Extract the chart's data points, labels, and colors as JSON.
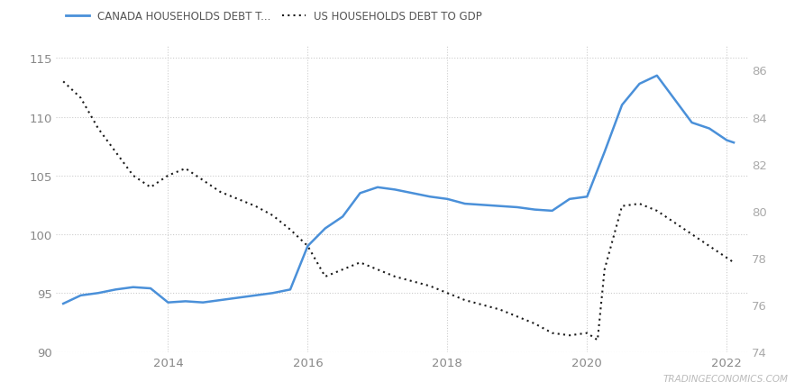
{
  "legend": [
    {
      "label": "CANADA HOUSEHOLDS DEBT T...",
      "color": "#4a90d9",
      "linestyle": "solid"
    },
    {
      "label": "US HOUSEHOLDS DEBT TO GDP",
      "color": "#1a1a1a",
      "linestyle": "dotted"
    }
  ],
  "canada": {
    "x": [
      2012.5,
      2012.75,
      2013.0,
      2013.25,
      2013.5,
      2013.75,
      2014.0,
      2014.25,
      2014.5,
      2014.75,
      2015.0,
      2015.25,
      2015.5,
      2015.75,
      2016.0,
      2016.25,
      2016.5,
      2016.75,
      2017.0,
      2017.25,
      2017.5,
      2017.75,
      2018.0,
      2018.25,
      2018.5,
      2018.75,
      2019.0,
      2019.25,
      2019.5,
      2019.75,
      2020.0,
      2020.25,
      2020.5,
      2020.75,
      2021.0,
      2021.25,
      2021.5,
      2021.75,
      2022.0,
      2022.1
    ],
    "y": [
      94.1,
      94.8,
      95.0,
      95.3,
      95.5,
      95.4,
      94.2,
      94.3,
      94.2,
      94.4,
      94.6,
      94.8,
      95.0,
      95.3,
      99.0,
      100.5,
      101.5,
      103.5,
      104.0,
      103.8,
      103.5,
      103.2,
      103.0,
      102.6,
      102.5,
      102.4,
      102.3,
      102.1,
      102.0,
      103.0,
      103.2,
      107.0,
      111.0,
      112.8,
      113.5,
      111.5,
      109.5,
      109.0,
      108.0,
      107.8
    ]
  },
  "us": {
    "x": [
      2012.5,
      2012.75,
      2013.0,
      2013.25,
      2013.5,
      2013.75,
      2014.0,
      2014.25,
      2014.5,
      2014.75,
      2015.0,
      2015.25,
      2015.5,
      2015.75,
      2016.0,
      2016.25,
      2016.5,
      2016.75,
      2017.0,
      2017.25,
      2017.5,
      2017.75,
      2018.0,
      2018.25,
      2018.5,
      2018.75,
      2019.0,
      2019.25,
      2019.5,
      2019.75,
      2020.0,
      2020.15,
      2020.25,
      2020.5,
      2020.75,
      2021.0,
      2021.25,
      2021.5,
      2021.75,
      2022.0,
      2022.1
    ],
    "y": [
      85.5,
      84.8,
      83.5,
      82.5,
      81.5,
      81.0,
      81.5,
      81.8,
      81.3,
      80.8,
      80.5,
      80.2,
      79.8,
      79.2,
      78.5,
      77.2,
      77.5,
      77.8,
      77.5,
      77.2,
      77.0,
      76.8,
      76.5,
      76.2,
      76.0,
      75.8,
      75.5,
      75.2,
      74.8,
      74.7,
      74.8,
      74.5,
      77.5,
      80.2,
      80.3,
      80.0,
      79.5,
      79.0,
      78.5,
      78.0,
      77.8
    ]
  },
  "left_ylim": [
    90,
    116
  ],
  "right_ylim": [
    74,
    87
  ],
  "left_yticks": [
    90,
    95,
    100,
    105,
    110,
    115
  ],
  "right_yticks": [
    74,
    76,
    78,
    80,
    82,
    84,
    86
  ],
  "xlim": [
    2012.4,
    2022.3
  ],
  "xticks": [
    2014,
    2016,
    2018,
    2020,
    2022
  ],
  "background_color": "#ffffff",
  "grid_color": "#cccccc",
  "watermark": "TRADINGECONOMICS.COM",
  "watermark_color": "#bbbbbb"
}
